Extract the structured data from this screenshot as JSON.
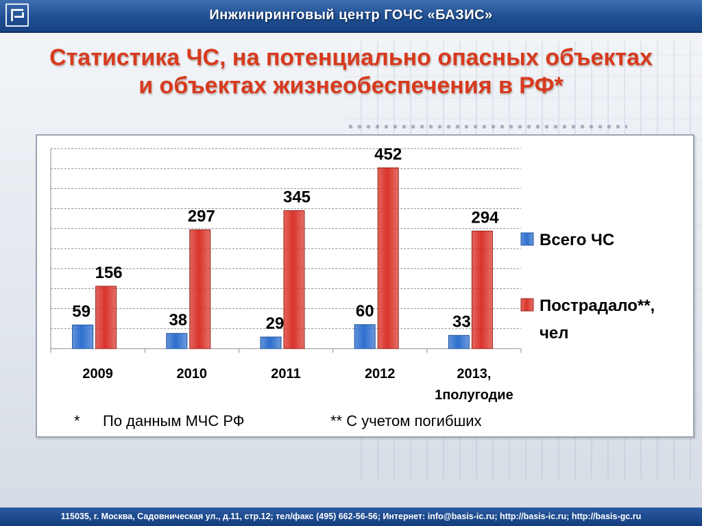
{
  "header": {
    "title": "Инжиниринговый центр ГОЧС «БАЗИС»",
    "logo_icon": "basis-logo-icon"
  },
  "slide": {
    "title_line1": "Статистика ЧС, на потенциально опасных объектах",
    "title_line2": "и объектах жизнеобеспечения в РФ*"
  },
  "chart_data": {
    "type": "bar",
    "categories": [
      "2009",
      "2010",
      "2011",
      "2012",
      "2013, 1полугодие"
    ],
    "category_lines": [
      [
        "2009"
      ],
      [
        "2010"
      ],
      [
        "2011"
      ],
      [
        "2012"
      ],
      [
        "2013,",
        "1полугодие"
      ]
    ],
    "series": [
      {
        "name": "Всего ЧС",
        "values": [
          59,
          38,
          29,
          60,
          33
        ],
        "color": "#2e6fce"
      },
      {
        "name": "Пострадало**, чел",
        "values": [
          156,
          297,
          345,
          452,
          294
        ],
        "color": "#d9342b"
      }
    ],
    "legend_lines": [
      [
        "Всего ЧС"
      ],
      [
        "Пострадало**,",
        "чел"
      ]
    ],
    "legend_position": "right",
    "ylim": [
      0,
      500
    ],
    "grid": true,
    "title": "",
    "xlabel": "",
    "ylabel": ""
  },
  "footnotes": {
    "left_star": "*",
    "left_text": "По данным МЧС РФ",
    "right_text": "** С учетом погибших"
  },
  "footer": {
    "text": "115035,  г. Москва,  Садовническая ул.,  д.11, стр.12; тел/факс (495) 662-56-56; Интернет: info@basis-ic.ru; http://basis-ic.ru; http://basis-gc.ru"
  }
}
